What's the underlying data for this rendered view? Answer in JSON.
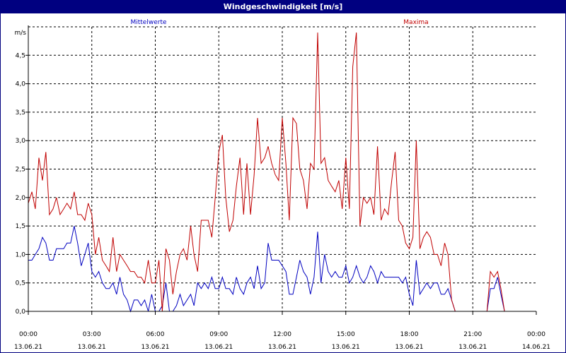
{
  "window": {
    "title": "Windgeschwindigkeit [m/s]"
  },
  "chart_data": {
    "type": "line",
    "title": "Windgeschwindigkeit [m/s]",
    "ylabel": "m/s",
    "ylim": [
      0,
      5
    ],
    "xlim": [
      0,
      24
    ],
    "grid": true,
    "legend": "top",
    "y_ticks": [
      {
        "v": 0.0,
        "label": "0,0"
      },
      {
        "v": 0.5,
        "label": "0,5"
      },
      {
        "v": 1.0,
        "label": "1,0"
      },
      {
        "v": 1.5,
        "label": "1,5"
      },
      {
        "v": 2.0,
        "label": "2,0"
      },
      {
        "v": 2.5,
        "label": "2,5"
      },
      {
        "v": 3.0,
        "label": "3,0"
      },
      {
        "v": 3.5,
        "label": "3,5"
      },
      {
        "v": 4.0,
        "label": "4,0"
      },
      {
        "v": 4.5,
        "label": "4,5"
      }
    ],
    "x_ticks": [
      {
        "v": 0,
        "time": "00:00",
        "date": "13.06.21"
      },
      {
        "v": 3,
        "time": "03:00",
        "date": "13.06.21"
      },
      {
        "v": 6,
        "time": "06:00",
        "date": "13.06.21"
      },
      {
        "v": 9,
        "time": "09:00",
        "date": "13.06.21"
      },
      {
        "v": 12,
        "time": "12:00",
        "date": "13.06.21"
      },
      {
        "v": 15,
        "time": "15:00",
        "date": "13.06.21"
      },
      {
        "v": 18,
        "time": "18:00",
        "date": "13.06.21"
      },
      {
        "v": 21,
        "time": "21:00",
        "date": "13.06.21"
      },
      {
        "v": 24,
        "time": "00:00",
        "date": "14.06.21"
      }
    ],
    "series": [
      {
        "name": "Mittelwerte",
        "color": "#0000c0",
        "points": [
          [
            0.0,
            0.9
          ],
          [
            0.17,
            0.9
          ],
          [
            0.33,
            1.0
          ],
          [
            0.5,
            1.1
          ],
          [
            0.67,
            1.3
          ],
          [
            0.83,
            1.2
          ],
          [
            1.0,
            0.9
          ],
          [
            1.17,
            0.9
          ],
          [
            1.33,
            1.1
          ],
          [
            1.5,
            1.1
          ],
          [
            1.67,
            1.1
          ],
          [
            1.83,
            1.2
          ],
          [
            2.0,
            1.2
          ],
          [
            2.17,
            1.5
          ],
          [
            2.33,
            1.2
          ],
          [
            2.5,
            0.8
          ],
          [
            2.67,
            1.0
          ],
          [
            2.83,
            1.2
          ],
          [
            3.0,
            0.7
          ],
          [
            3.17,
            0.6
          ],
          [
            3.33,
            0.7
          ],
          [
            3.5,
            0.5
          ],
          [
            3.67,
            0.4
          ],
          [
            3.83,
            0.4
          ],
          [
            4.0,
            0.5
          ],
          [
            4.17,
            0.3
          ],
          [
            4.33,
            0.6
          ],
          [
            4.5,
            0.3
          ],
          [
            4.67,
            0.2
          ],
          [
            4.83,
            0.0
          ],
          [
            5.0,
            0.2
          ],
          [
            5.17,
            0.2
          ],
          [
            5.33,
            0.1
          ],
          [
            5.5,
            0.2
          ],
          [
            5.67,
            0.0
          ],
          [
            5.83,
            0.3
          ],
          [
            6.0,
            0.0
          ],
          [
            6.17,
            0.0
          ],
          [
            6.33,
            0.1
          ],
          [
            6.5,
            0.5
          ],
          [
            6.67,
            0.0
          ],
          [
            6.83,
            0.0
          ],
          [
            7.0,
            0.1
          ],
          [
            7.17,
            0.3
          ],
          [
            7.33,
            0.1
          ],
          [
            7.5,
            0.2
          ],
          [
            7.67,
            0.3
          ],
          [
            7.83,
            0.1
          ],
          [
            8.0,
            0.5
          ],
          [
            8.17,
            0.4
          ],
          [
            8.33,
            0.5
          ],
          [
            8.5,
            0.4
          ],
          [
            8.67,
            0.6
          ],
          [
            8.83,
            0.4
          ],
          [
            9.0,
            0.4
          ],
          [
            9.17,
            0.6
          ],
          [
            9.33,
            0.4
          ],
          [
            9.5,
            0.4
          ],
          [
            9.67,
            0.3
          ],
          [
            9.83,
            0.6
          ],
          [
            10.0,
            0.4
          ],
          [
            10.17,
            0.3
          ],
          [
            10.33,
            0.5
          ],
          [
            10.5,
            0.6
          ],
          [
            10.67,
            0.4
          ],
          [
            10.83,
            0.8
          ],
          [
            11.0,
            0.4
          ],
          [
            11.17,
            0.5
          ],
          [
            11.33,
            1.2
          ],
          [
            11.5,
            0.9
          ],
          [
            11.67,
            0.9
          ],
          [
            11.83,
            0.9
          ],
          [
            12.0,
            0.8
          ],
          [
            12.17,
            0.7
          ],
          [
            12.33,
            0.3
          ],
          [
            12.5,
            0.3
          ],
          [
            12.67,
            0.6
          ],
          [
            12.83,
            0.9
          ],
          [
            13.0,
            0.7
          ],
          [
            13.17,
            0.6
          ],
          [
            13.33,
            0.3
          ],
          [
            13.5,
            0.6
          ],
          [
            13.67,
            1.4
          ],
          [
            13.83,
            0.5
          ],
          [
            14.0,
            1.0
          ],
          [
            14.17,
            0.7
          ],
          [
            14.33,
            0.6
          ],
          [
            14.5,
            0.7
          ],
          [
            14.67,
            0.6
          ],
          [
            14.83,
            0.6
          ],
          [
            15.0,
            0.8
          ],
          [
            15.17,
            0.5
          ],
          [
            15.33,
            0.6
          ],
          [
            15.5,
            0.8
          ],
          [
            15.67,
            0.6
          ],
          [
            15.83,
            0.5
          ],
          [
            16.0,
            0.6
          ],
          [
            16.17,
            0.8
          ],
          [
            16.33,
            0.7
          ],
          [
            16.5,
            0.5
          ],
          [
            16.67,
            0.7
          ],
          [
            16.83,
            0.6
          ],
          [
            17.0,
            0.6
          ],
          [
            17.17,
            0.6
          ],
          [
            17.33,
            0.6
          ],
          [
            17.5,
            0.6
          ],
          [
            17.67,
            0.5
          ],
          [
            17.83,
            0.6
          ],
          [
            18.0,
            0.3
          ],
          [
            18.17,
            0.1
          ],
          [
            18.33,
            0.9
          ],
          [
            18.5,
            0.3
          ],
          [
            18.67,
            0.4
          ],
          [
            18.83,
            0.5
          ],
          [
            19.0,
            0.4
          ],
          [
            19.17,
            0.5
          ],
          [
            19.33,
            0.5
          ],
          [
            19.5,
            0.3
          ],
          [
            19.67,
            0.3
          ],
          [
            19.83,
            0.4
          ],
          [
            20.0,
            0.2
          ],
          [
            20.17,
            0.0
          ],
          [
            20.5,
            0.0
          ],
          [
            21.0,
            0.0
          ],
          [
            21.5,
            0.0
          ],
          [
            21.67,
            0.0
          ],
          [
            21.83,
            0.4
          ],
          [
            22.0,
            0.4
          ],
          [
            22.17,
            0.6
          ],
          [
            22.33,
            0.3
          ],
          [
            22.5,
            0.0
          ],
          [
            23.0,
            0.0
          ],
          [
            24.0,
            0.0
          ]
        ]
      },
      {
        "name": "Maxima",
        "color": "#c00000",
        "points": [
          [
            0.0,
            1.9
          ],
          [
            0.17,
            2.1
          ],
          [
            0.33,
            1.8
          ],
          [
            0.5,
            2.7
          ],
          [
            0.67,
            2.3
          ],
          [
            0.83,
            2.8
          ],
          [
            1.0,
            1.7
          ],
          [
            1.17,
            1.8
          ],
          [
            1.33,
            2.0
          ],
          [
            1.5,
            1.7
          ],
          [
            1.67,
            1.8
          ],
          [
            1.83,
            1.9
          ],
          [
            2.0,
            1.8
          ],
          [
            2.17,
            2.1
          ],
          [
            2.33,
            1.7
          ],
          [
            2.5,
            1.7
          ],
          [
            2.67,
            1.6
          ],
          [
            2.83,
            1.9
          ],
          [
            3.0,
            1.7
          ],
          [
            3.17,
            1.0
          ],
          [
            3.33,
            1.3
          ],
          [
            3.5,
            0.9
          ],
          [
            3.67,
            0.8
          ],
          [
            3.83,
            0.7
          ],
          [
            4.0,
            1.3
          ],
          [
            4.17,
            0.7
          ],
          [
            4.33,
            1.0
          ],
          [
            4.5,
            0.9
          ],
          [
            4.67,
            0.8
          ],
          [
            4.83,
            0.7
          ],
          [
            5.0,
            0.7
          ],
          [
            5.17,
            0.6
          ],
          [
            5.33,
            0.6
          ],
          [
            5.5,
            0.5
          ],
          [
            5.67,
            0.9
          ],
          [
            5.83,
            0.5
          ],
          [
            6.0,
            0.5
          ],
          [
            6.17,
            0.9
          ],
          [
            6.33,
            0.0
          ],
          [
            6.5,
            1.1
          ],
          [
            6.67,
            0.9
          ],
          [
            6.83,
            0.3
          ],
          [
            7.0,
            0.7
          ],
          [
            7.17,
            1.0
          ],
          [
            7.33,
            1.1
          ],
          [
            7.5,
            0.9
          ],
          [
            7.67,
            1.5
          ],
          [
            7.83,
            1.0
          ],
          [
            8.0,
            0.7
          ],
          [
            8.17,
            1.6
          ],
          [
            8.33,
            1.6
          ],
          [
            8.5,
            1.6
          ],
          [
            8.67,
            1.3
          ],
          [
            8.83,
            2.0
          ],
          [
            9.0,
            2.8
          ],
          [
            9.17,
            3.1
          ],
          [
            9.33,
            2.0
          ],
          [
            9.5,
            1.4
          ],
          [
            9.67,
            1.6
          ],
          [
            9.83,
            2.2
          ],
          [
            10.0,
            2.7
          ],
          [
            10.17,
            1.7
          ],
          [
            10.33,
            2.6
          ],
          [
            10.5,
            1.7
          ],
          [
            10.67,
            2.4
          ],
          [
            10.83,
            3.4
          ],
          [
            11.0,
            2.6
          ],
          [
            11.17,
            2.7
          ],
          [
            11.33,
            2.9
          ],
          [
            11.5,
            2.6
          ],
          [
            11.67,
            2.4
          ],
          [
            11.83,
            2.3
          ],
          [
            12.0,
            3.4
          ],
          [
            12.17,
            2.6
          ],
          [
            12.33,
            1.6
          ],
          [
            12.5,
            3.4
          ],
          [
            12.67,
            3.3
          ],
          [
            12.83,
            2.5
          ],
          [
            13.0,
            2.3
          ],
          [
            13.17,
            1.8
          ],
          [
            13.33,
            2.6
          ],
          [
            13.5,
            2.5
          ],
          [
            13.67,
            4.9
          ],
          [
            13.83,
            2.6
          ],
          [
            14.0,
            2.7
          ],
          [
            14.17,
            2.3
          ],
          [
            14.33,
            2.2
          ],
          [
            14.5,
            2.1
          ],
          [
            14.67,
            2.3
          ],
          [
            14.83,
            1.8
          ],
          [
            15.0,
            2.7
          ],
          [
            15.17,
            1.8
          ],
          [
            15.33,
            4.3
          ],
          [
            15.5,
            4.9
          ],
          [
            15.67,
            1.5
          ],
          [
            15.83,
            2.0
          ],
          [
            16.0,
            1.9
          ],
          [
            16.17,
            2.0
          ],
          [
            16.33,
            1.7
          ],
          [
            16.5,
            2.9
          ],
          [
            16.67,
            1.6
          ],
          [
            16.83,
            1.8
          ],
          [
            17.0,
            1.7
          ],
          [
            17.17,
            2.3
          ],
          [
            17.33,
            2.8
          ],
          [
            17.5,
            1.6
          ],
          [
            17.67,
            1.5
          ],
          [
            17.83,
            1.2
          ],
          [
            18.0,
            1.1
          ],
          [
            18.17,
            1.3
          ],
          [
            18.33,
            3.0
          ],
          [
            18.5,
            1.1
          ],
          [
            18.67,
            1.3
          ],
          [
            18.83,
            1.4
          ],
          [
            19.0,
            1.3
          ],
          [
            19.17,
            1.0
          ],
          [
            19.33,
            1.0
          ],
          [
            19.5,
            0.8
          ],
          [
            19.67,
            1.2
          ],
          [
            19.83,
            1.0
          ],
          [
            20.0,
            0.2
          ],
          [
            20.17,
            0.0
          ],
          [
            20.5,
            0.0
          ],
          [
            21.0,
            0.0
          ],
          [
            21.5,
            0.0
          ],
          [
            21.67,
            0.0
          ],
          [
            21.83,
            0.7
          ],
          [
            22.0,
            0.6
          ],
          [
            22.17,
            0.7
          ],
          [
            22.33,
            0.4
          ],
          [
            22.5,
            0.0
          ],
          [
            23.0,
            0.0
          ],
          [
            24.0,
            0.0
          ]
        ]
      }
    ]
  }
}
